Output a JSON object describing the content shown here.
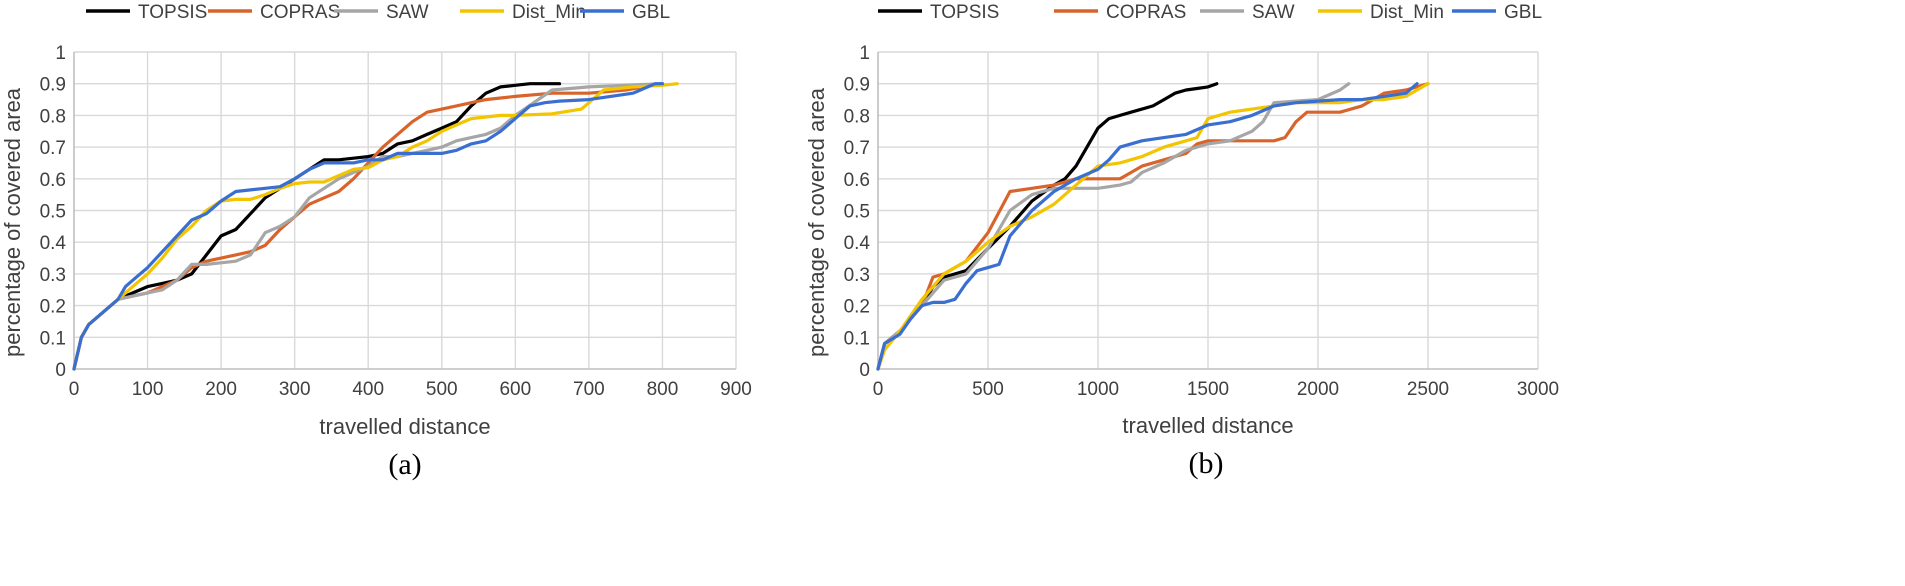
{
  "colors": {
    "TOPSIS": "#000000",
    "COPRAS": "#d9642b",
    "SAW": "#a6a6a6",
    "Dist_Min": "#f2c500",
    "GBL": "#3a6fd1"
  },
  "chart_data": [
    {
      "type": "line",
      "caption": "(a)",
      "xlabel": "travelled distance",
      "ylabel": "percentage of covered area",
      "xlim": [
        0,
        900
      ],
      "ylim": [
        0,
        1
      ],
      "x_ticks": [
        0,
        100,
        200,
        300,
        400,
        500,
        600,
        700,
        800,
        900
      ],
      "y_ticks": [
        0,
        0.1,
        0.2,
        0.3,
        0.4,
        0.5,
        0.6,
        0.7,
        0.8,
        0.9,
        1
      ],
      "x_tick_labels": [
        "0",
        "100",
        "200",
        "300",
        "400",
        "500",
        "600",
        "700",
        "800",
        "900"
      ],
      "y_tick_labels": [
        "0",
        "0.1",
        "0.2",
        "0.3",
        "0.4",
        "0.5",
        "0.6",
        "0.7",
        "0.8",
        "0.9",
        "1"
      ],
      "grid": true,
      "legend": [
        "TOPSIS",
        "COPRAS",
        "SAW",
        "Dist_Min",
        "GBL"
      ],
      "legend_position": "top",
      "series": [
        {
          "name": "TOPSIS",
          "x": [
            0,
            10,
            20,
            40,
            60,
            80,
            100,
            120,
            140,
            160,
            180,
            200,
            220,
            240,
            260,
            280,
            300,
            320,
            340,
            360,
            380,
            400,
            420,
            440,
            460,
            480,
            500,
            520,
            540,
            560,
            580,
            600,
            620,
            640,
            660
          ],
          "y": [
            0,
            0.1,
            0.14,
            0.18,
            0.22,
            0.24,
            0.26,
            0.27,
            0.28,
            0.3,
            0.36,
            0.42,
            0.44,
            0.49,
            0.54,
            0.57,
            0.6,
            0.63,
            0.66,
            0.66,
            0.665,
            0.67,
            0.68,
            0.71,
            0.72,
            0.74,
            0.76,
            0.78,
            0.83,
            0.87,
            0.89,
            0.895,
            0.9,
            0.9,
            0.9
          ]
        },
        {
          "name": "COPRAS",
          "x": [
            0,
            10,
            20,
            40,
            60,
            80,
            100,
            120,
            140,
            160,
            180,
            200,
            220,
            240,
            260,
            280,
            300,
            320,
            340,
            360,
            380,
            400,
            420,
            440,
            460,
            480,
            500,
            520,
            540,
            560,
            580,
            600,
            650,
            700,
            750,
            800
          ],
          "y": [
            0,
            0.1,
            0.14,
            0.18,
            0.22,
            0.23,
            0.24,
            0.26,
            0.28,
            0.32,
            0.34,
            0.35,
            0.36,
            0.37,
            0.39,
            0.44,
            0.48,
            0.52,
            0.54,
            0.56,
            0.6,
            0.65,
            0.7,
            0.74,
            0.78,
            0.81,
            0.82,
            0.83,
            0.84,
            0.85,
            0.855,
            0.86,
            0.87,
            0.87,
            0.88,
            0.9
          ]
        },
        {
          "name": "SAW",
          "x": [
            0,
            10,
            20,
            40,
            60,
            80,
            100,
            120,
            140,
            160,
            180,
            200,
            220,
            240,
            260,
            280,
            300,
            320,
            340,
            360,
            380,
            400,
            420,
            440,
            460,
            480,
            500,
            520,
            540,
            560,
            580,
            600,
            650,
            700,
            750,
            800
          ],
          "y": [
            0,
            0.1,
            0.14,
            0.18,
            0.22,
            0.23,
            0.24,
            0.25,
            0.28,
            0.33,
            0.33,
            0.335,
            0.34,
            0.36,
            0.43,
            0.45,
            0.48,
            0.54,
            0.57,
            0.6,
            0.62,
            0.64,
            0.67,
            0.67,
            0.68,
            0.69,
            0.7,
            0.72,
            0.73,
            0.74,
            0.76,
            0.8,
            0.88,
            0.89,
            0.895,
            0.9
          ]
        },
        {
          "name": "Dist_Min",
          "x": [
            0,
            10,
            20,
            40,
            60,
            80,
            100,
            120,
            140,
            160,
            180,
            200,
            220,
            240,
            260,
            280,
            300,
            320,
            340,
            360,
            380,
            400,
            420,
            440,
            460,
            480,
            500,
            520,
            540,
            560,
            580,
            600,
            650,
            690,
            710,
            720,
            760,
            800,
            820
          ],
          "y": [
            0,
            0.1,
            0.14,
            0.18,
            0.22,
            0.26,
            0.3,
            0.35,
            0.41,
            0.45,
            0.5,
            0.53,
            0.535,
            0.535,
            0.55,
            0.57,
            0.585,
            0.59,
            0.59,
            0.61,
            0.63,
            0.635,
            0.66,
            0.67,
            0.7,
            0.72,
            0.75,
            0.77,
            0.79,
            0.795,
            0.8,
            0.8,
            0.805,
            0.82,
            0.86,
            0.88,
            0.89,
            0.895,
            0.9
          ]
        },
        {
          "name": "GBL",
          "x": [
            0,
            10,
            20,
            40,
            60,
            70,
            80,
            100,
            120,
            140,
            160,
            180,
            200,
            220,
            240,
            260,
            280,
            300,
            320,
            340,
            360,
            380,
            400,
            420,
            440,
            460,
            480,
            500,
            520,
            540,
            560,
            580,
            600,
            620,
            640,
            660,
            700,
            760,
            780,
            790,
            800
          ],
          "y": [
            0,
            0.1,
            0.14,
            0.18,
            0.22,
            0.26,
            0.28,
            0.32,
            0.37,
            0.42,
            0.47,
            0.49,
            0.53,
            0.56,
            0.565,
            0.57,
            0.575,
            0.6,
            0.63,
            0.65,
            0.65,
            0.65,
            0.66,
            0.66,
            0.68,
            0.68,
            0.68,
            0.68,
            0.69,
            0.71,
            0.72,
            0.75,
            0.79,
            0.83,
            0.84,
            0.845,
            0.85,
            0.87,
            0.89,
            0.9,
            0.9
          ]
        }
      ]
    },
    {
      "type": "line",
      "caption": "(b)",
      "xlabel": "travelled distance",
      "ylabel": "percentage of covered area",
      "xlim": [
        0,
        3000
      ],
      "ylim": [
        0,
        1
      ],
      "x_ticks": [
        0,
        500,
        1000,
        1500,
        2000,
        2500,
        3000
      ],
      "y_ticks": [
        0,
        0.1,
        0.2,
        0.3,
        0.4,
        0.5,
        0.6,
        0.7,
        0.8,
        0.9,
        1
      ],
      "x_tick_labels": [
        "0",
        "500",
        "1000",
        "1500",
        "2000",
        "2500",
        "3000"
      ],
      "y_tick_labels": [
        "0",
        "0.1",
        "0.2",
        "0.3",
        "0.4",
        "0.5",
        "0.6",
        "0.7",
        "0.8",
        "0.9",
        "1"
      ],
      "grid": true,
      "legend": [
        "TOPSIS",
        "COPRAS",
        "SAW",
        "Dist_Min",
        "GBL"
      ],
      "legend_position": "top",
      "series": [
        {
          "name": "TOPSIS",
          "x": [
            0,
            30,
            100,
            200,
            250,
            300,
            400,
            500,
            600,
            700,
            800,
            850,
            900,
            950,
            1000,
            1050,
            1100,
            1150,
            1200,
            1250,
            1300,
            1350,
            1400,
            1450,
            1500,
            1540
          ],
          "y": [
            0,
            0.08,
            0.12,
            0.2,
            0.26,
            0.29,
            0.31,
            0.38,
            0.45,
            0.53,
            0.58,
            0.6,
            0.64,
            0.7,
            0.76,
            0.79,
            0.8,
            0.81,
            0.82,
            0.83,
            0.85,
            0.87,
            0.88,
            0.885,
            0.89,
            0.9
          ]
        },
        {
          "name": "COPRAS",
          "x": [
            0,
            30,
            100,
            200,
            250,
            300,
            400,
            500,
            600,
            700,
            800,
            900,
            1000,
            1100,
            1150,
            1200,
            1300,
            1400,
            1450,
            1500,
            1600,
            1700,
            1800,
            1850,
            1900,
            1950,
            2000,
            2100,
            2200,
            2250,
            2300,
            2400,
            2500
          ],
          "y": [
            0,
            0.08,
            0.12,
            0.2,
            0.29,
            0.3,
            0.34,
            0.43,
            0.56,
            0.57,
            0.58,
            0.6,
            0.6,
            0.6,
            0.62,
            0.64,
            0.66,
            0.68,
            0.71,
            0.72,
            0.72,
            0.72,
            0.72,
            0.73,
            0.78,
            0.81,
            0.81,
            0.81,
            0.83,
            0.85,
            0.87,
            0.88,
            0.9
          ]
        },
        {
          "name": "SAW",
          "x": [
            0,
            30,
            100,
            200,
            300,
            400,
            500,
            600,
            700,
            800,
            900,
            1000,
            1100,
            1150,
            1200,
            1300,
            1400,
            1500,
            1600,
            1700,
            1750,
            1800,
            1900,
            2000,
            2100,
            2140
          ],
          "y": [
            0,
            0.08,
            0.12,
            0.2,
            0.28,
            0.3,
            0.38,
            0.5,
            0.55,
            0.57,
            0.57,
            0.57,
            0.58,
            0.59,
            0.62,
            0.65,
            0.69,
            0.71,
            0.72,
            0.75,
            0.78,
            0.84,
            0.845,
            0.85,
            0.88,
            0.9
          ]
        },
        {
          "name": "Dist_Min",
          "x": [
            0,
            30,
            100,
            200,
            300,
            400,
            500,
            600,
            700,
            800,
            900,
            1000,
            1100,
            1200,
            1300,
            1400,
            1450,
            1500,
            1600,
            1700,
            1800,
            1900,
            2000,
            2100,
            2200,
            2300,
            2400,
            2450,
            2500
          ],
          "y": [
            0,
            0.06,
            0.12,
            0.22,
            0.3,
            0.34,
            0.4,
            0.45,
            0.48,
            0.52,
            0.58,
            0.64,
            0.65,
            0.67,
            0.7,
            0.72,
            0.73,
            0.79,
            0.81,
            0.82,
            0.83,
            0.84,
            0.84,
            0.84,
            0.85,
            0.85,
            0.86,
            0.88,
            0.9
          ]
        },
        {
          "name": "GBL",
          "x": [
            0,
            30,
            100,
            150,
            200,
            250,
            300,
            350,
            400,
            450,
            500,
            550,
            600,
            700,
            800,
            900,
            1000,
            1050,
            1100,
            1200,
            1300,
            1400,
            1500,
            1600,
            1700,
            1800,
            1900,
            2000,
            2100,
            2200,
            2300,
            2400,
            2450
          ],
          "y": [
            0,
            0.08,
            0.11,
            0.16,
            0.2,
            0.21,
            0.21,
            0.22,
            0.27,
            0.31,
            0.32,
            0.33,
            0.42,
            0.5,
            0.56,
            0.6,
            0.63,
            0.66,
            0.7,
            0.72,
            0.73,
            0.74,
            0.77,
            0.78,
            0.8,
            0.83,
            0.84,
            0.845,
            0.85,
            0.85,
            0.86,
            0.87,
            0.9
          ]
        }
      ]
    }
  ]
}
